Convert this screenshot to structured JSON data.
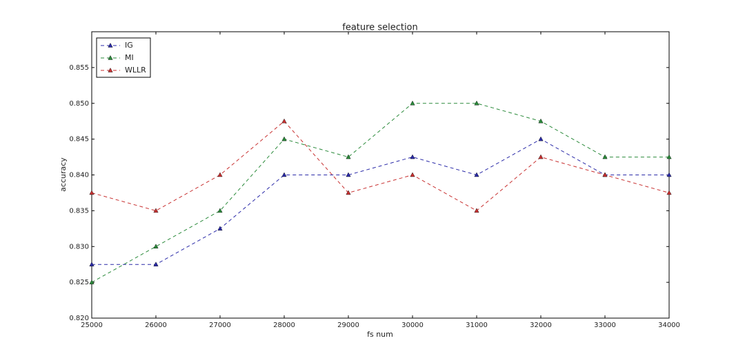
{
  "chart_data": {
    "type": "line",
    "title": "feature selection",
    "x_label": "fs num",
    "y_label": "accuracy",
    "x": [
      25000,
      26000,
      27000,
      28000,
      29000,
      30000,
      31000,
      32000,
      33000,
      34000
    ],
    "xlim": [
      25000,
      34000
    ],
    "xticks": [
      25000,
      26000,
      27000,
      28000,
      29000,
      30000,
      31000,
      32000,
      33000,
      34000
    ],
    "ylim": [
      0.82,
      0.86
    ],
    "yticks": [
      {
        "value": 0.82,
        "label": "0.820"
      },
      0.825,
      {
        "value": 0.83,
        "label": "0.830"
      },
      0.835,
      {
        "value": 0.84,
        "label": "0.840"
      },
      0.845,
      {
        "value": 0.85,
        "label": "0.850"
      },
      0.855
    ],
    "legend": "upper left",
    "series": [
      {
        "name": "IG",
        "color": "#2a2aa8",
        "values": [
          0.8275,
          0.8275,
          0.8325,
          0.84,
          0.84,
          0.8425,
          0.84,
          0.845,
          0.84,
          0.84
        ]
      },
      {
        "name": "MI",
        "color": "#2a8a3a",
        "values": [
          0.825,
          0.83,
          0.835,
          0.845,
          0.8425,
          0.85,
          0.85,
          0.8475,
          0.8425,
          0.8425
        ]
      },
      {
        "name": "WLLR",
        "color": "#c83030",
        "values": [
          0.8375,
          0.835,
          0.84,
          0.8475,
          0.8375,
          0.84,
          0.835,
          0.8425,
          0.84,
          0.8375
        ]
      }
    ]
  }
}
